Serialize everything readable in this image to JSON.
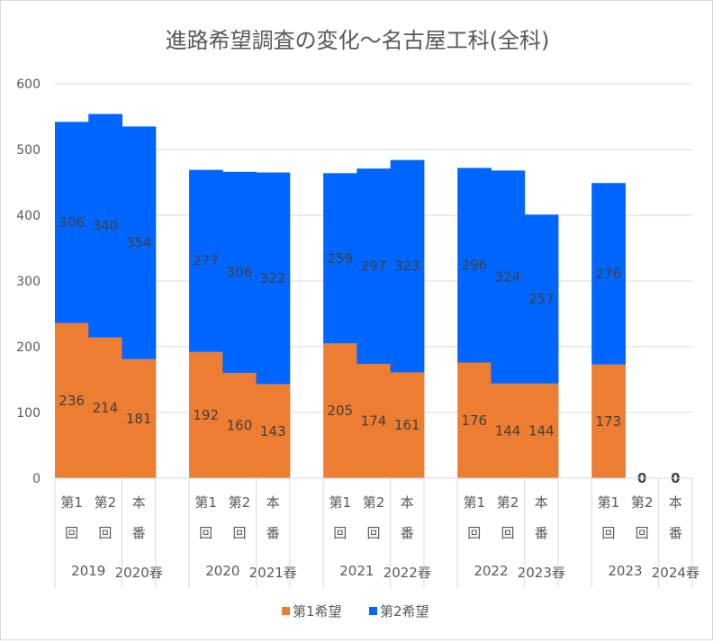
{
  "chart_data": {
    "type": "bar",
    "stacked": true,
    "title": "進路希望調査の変化～名古屋工科(全科)",
    "ylim": [
      0,
      600
    ],
    "yticks": [
      0,
      100,
      200,
      300,
      400,
      500,
      600
    ],
    "grid": true,
    "legend_position": "bottom",
    "groups": [
      {
        "year": "2019",
        "spring": "2020春"
      },
      {
        "year": "2020",
        "spring": "2021春"
      },
      {
        "year": "2021",
        "spring": "2022春"
      },
      {
        "year": "2022",
        "spring": "2023春"
      },
      {
        "year": "2023",
        "spring": "2024春"
      }
    ],
    "subcategories": [
      [
        "第1",
        "回"
      ],
      [
        "第2",
        "回"
      ],
      [
        "本",
        "番"
      ]
    ],
    "series": [
      {
        "name": "第1希望",
        "color": "#ed7d31",
        "values": [
          236,
          214,
          181,
          192,
          160,
          143,
          205,
          174,
          161,
          176,
          144,
          144,
          173,
          0,
          0
        ]
      },
      {
        "name": "第2希望",
        "color": "#0066ff",
        "values": [
          306,
          340,
          354,
          277,
          306,
          322,
          259,
          297,
          323,
          296,
          324,
          257,
          276,
          0,
          0
        ]
      }
    ]
  }
}
